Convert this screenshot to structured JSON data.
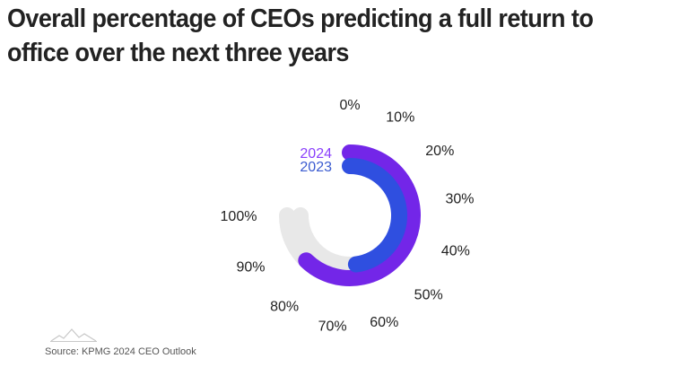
{
  "title": "Overall percentage of CEOs predicting a full return to office over the next three years",
  "source": "Source: KPMG 2024 CEO Outlook",
  "colors": {
    "series_2024": "#7326e8",
    "series_2023": "#2f4fe0",
    "track": "#e8e8e8",
    "label_2024": "#8a3ffc",
    "label_2023": "#3a5bd0"
  },
  "icons": {
    "logo": "mountain-logo-icon"
  },
  "chart_data": {
    "type": "radial-bar",
    "title": "Overall percentage of CEOs predicting a full return to office over the next three years",
    "axis": {
      "min": 0,
      "max": 100,
      "ticks": [
        "0%",
        "10%",
        "20%",
        "30%",
        "40%",
        "50%",
        "60%",
        "70%",
        "80%",
        "90%",
        "100%"
      ]
    },
    "series": [
      {
        "name": "2024",
        "value": 0.83
      },
      {
        "name": "2023",
        "value": 0.64
      }
    ]
  }
}
